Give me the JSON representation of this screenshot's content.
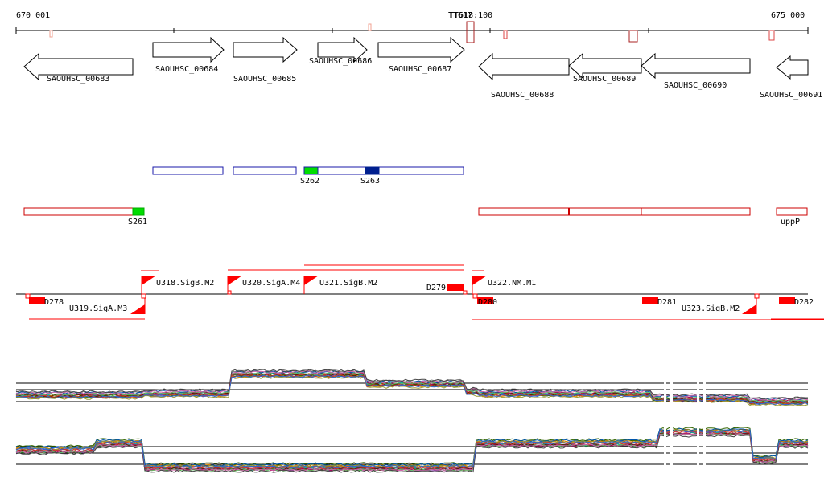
{
  "axis": {
    "start_label": "670 001",
    "end_label": "675 000",
    "center_label": "TT618:100",
    "center_label_overlap": "TT617"
  },
  "genes": [
    {
      "id": "SAOUHSC_00683",
      "strand": "-"
    },
    {
      "id": "SAOUHSC_00684",
      "strand": "+"
    },
    {
      "id": "SAOUHSC_00685",
      "strand": "+"
    },
    {
      "id": "SAOUHSC_00686",
      "strand": "+"
    },
    {
      "id": "SAOUHSC_00687",
      "strand": "+"
    },
    {
      "id": "SAOUHSC_00688",
      "strand": "-"
    },
    {
      "id": "SAOUHSC_00689",
      "strand": "-"
    },
    {
      "id": "SAOUHSC_00690",
      "strand": "-"
    },
    {
      "id": "SAOUHSC_00691",
      "strand": "-"
    }
  ],
  "segments_plus": [
    {
      "label": "S262",
      "color": "#00dd00"
    },
    {
      "label": "S263",
      "color": "#001f8f"
    }
  ],
  "segments_minus": [
    {
      "label": "S261",
      "color": "#00dd00"
    },
    {
      "label": "uppP",
      "color": "#ffffff"
    }
  ],
  "promoters_plus": [
    "U318.SigB.M2",
    "U320.SigA.M4",
    "U321.SigB.M2",
    "U322.NM.M1"
  ],
  "promoters_minus": [
    "U319.SigA.M3",
    "U323.SigB.M2"
  ],
  "terminators": [
    "D278",
    "D279",
    "D280",
    "D281",
    "D282"
  ],
  "colors": {
    "gene_outline": "#000000",
    "plus_segment": "#1a1aa8",
    "minus_segment": "#cc0000",
    "promoter": "#ff0000",
    "axis": "#000000"
  }
}
